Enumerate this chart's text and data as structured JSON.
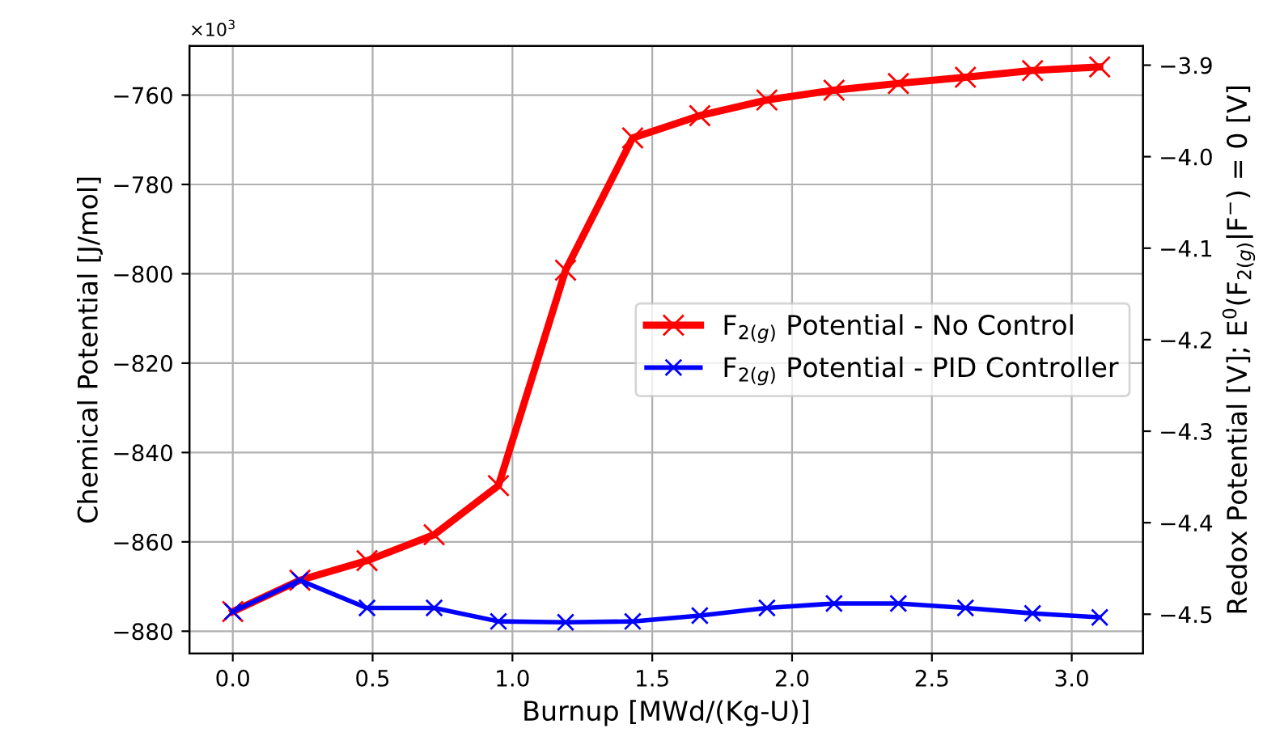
{
  "chart_data": {
    "type": "line",
    "xlabel": "Burnup [MWd/(Kg-U)]",
    "ylabel": "Chemical Potential [J/mol]",
    "y2label": "Redox Potential [V]; E$^{0}$(F$_{2(g)}$|F$^{−}$) = 0 [V]",
    "x": [
      0,
      0.24,
      0.48,
      0.72,
      0.95,
      1.19,
      1.43,
      1.67,
      1.91,
      2.15,
      2.38,
      2.62,
      2.86,
      3.1
    ],
    "series": [
      {
        "name": "F$_{2(g)}$ Potential - No Control",
        "color": "#ff0000",
        "values": [
          -875.6,
          -868.6,
          -864.2,
          -858.4,
          -847.4,
          -799.2,
          -769.6,
          -764.6,
          -761.1,
          -758.9,
          -757.4,
          -756.0,
          -754.5,
          -753.7
        ]
      },
      {
        "name": "F$_{2(g)}$ Potential - PID Controller",
        "color": "#0000ff",
        "values": [
          -875.6,
          -868.6,
          -874.8,
          -874.8,
          -877.8,
          -878.0,
          -877.8,
          -876.5,
          -874.8,
          -873.8,
          -873.8,
          -874.8,
          -876.0,
          -876.9
        ]
      }
    ],
    "xlim": [
      -0.155,
      3.255
    ],
    "xticks": [
      {
        "value": 0,
        "label": "0.0"
      },
      0.5,
      {
        "value": 1,
        "label": "1.0"
      },
      1.5,
      {
        "value": 2,
        "label": "2.0"
      },
      2.5,
      {
        "value": 3,
        "label": "3.0"
      }
    ],
    "ylim": [
      -885,
      -749
    ],
    "yticks": [
      {
        "value": -880,
        "label": "−880"
      },
      {
        "value": -860,
        "label": "−860"
      },
      {
        "value": -840,
        "label": "−840"
      },
      {
        "value": -820,
        "label": "−820"
      },
      {
        "value": -800,
        "label": "−800"
      },
      {
        "value": -780,
        "label": "−780"
      },
      {
        "value": -760,
        "label": "−760"
      }
    ],
    "y2lim": [
      -4.543,
      -3.879
    ],
    "y2ticks": [
      {
        "value": -4.5,
        "label": "−4.5"
      },
      {
        "value": -4.4,
        "label": "−4.4"
      },
      {
        "value": -4.3,
        "label": "−4.3"
      },
      {
        "value": -4.2,
        "label": "−4.2"
      },
      {
        "value": -4.1,
        "label": "−4.1"
      },
      {
        "value": -4.0,
        "label": "−4.0"
      },
      {
        "value": -3.9,
        "label": "−3.9"
      }
    ],
    "annotations": [
      "×10$^{3}$"
    ],
    "grid": true,
    "legend": "center right",
    "marker": "cross",
    "line_style": "solid"
  }
}
